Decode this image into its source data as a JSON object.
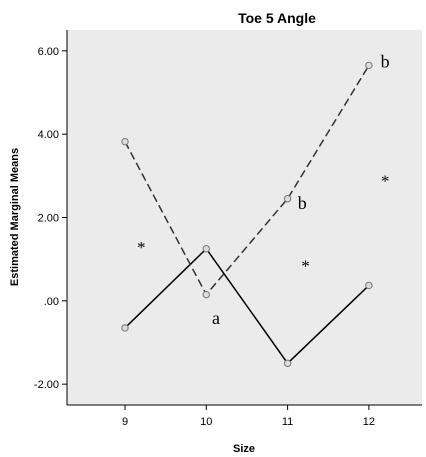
{
  "chart_data": {
    "type": "line",
    "title": "Toe 5 Angle",
    "xlabel": "Size",
    "ylabel": "Estimated Marginal Means",
    "categories": [
      "9",
      "10",
      "11",
      "12"
    ],
    "ylim": [
      -2.5,
      6.5
    ],
    "yticks": [
      -2.0,
      0.0,
      2.0,
      4.0,
      6.0
    ],
    "ytick_labels": [
      "-2.00",
      ".00",
      "2.00",
      "4.00",
      "6.00"
    ],
    "grid": false,
    "plot_background": "#ebebeb",
    "series": [
      {
        "style": "solid",
        "color": "#000000",
        "values": [
          -0.65,
          1.25,
          -1.5,
          0.37
        ]
      },
      {
        "style": "dashed",
        "color": "#333333",
        "values": [
          3.82,
          0.15,
          2.45,
          5.65
        ]
      }
    ],
    "annotations": [
      {
        "text": "*",
        "x": 9.2,
        "y": 1.15
      },
      {
        "text": "a",
        "x": 10.12,
        "y": -0.55
      },
      {
        "text": "b",
        "x": 11.18,
        "y": 2.2
      },
      {
        "text": "*",
        "x": 11.22,
        "y": 0.7
      },
      {
        "text": "b",
        "x": 12.2,
        "y": 5.6
      },
      {
        "text": "*",
        "x": 12.2,
        "y": 2.75
      }
    ]
  }
}
